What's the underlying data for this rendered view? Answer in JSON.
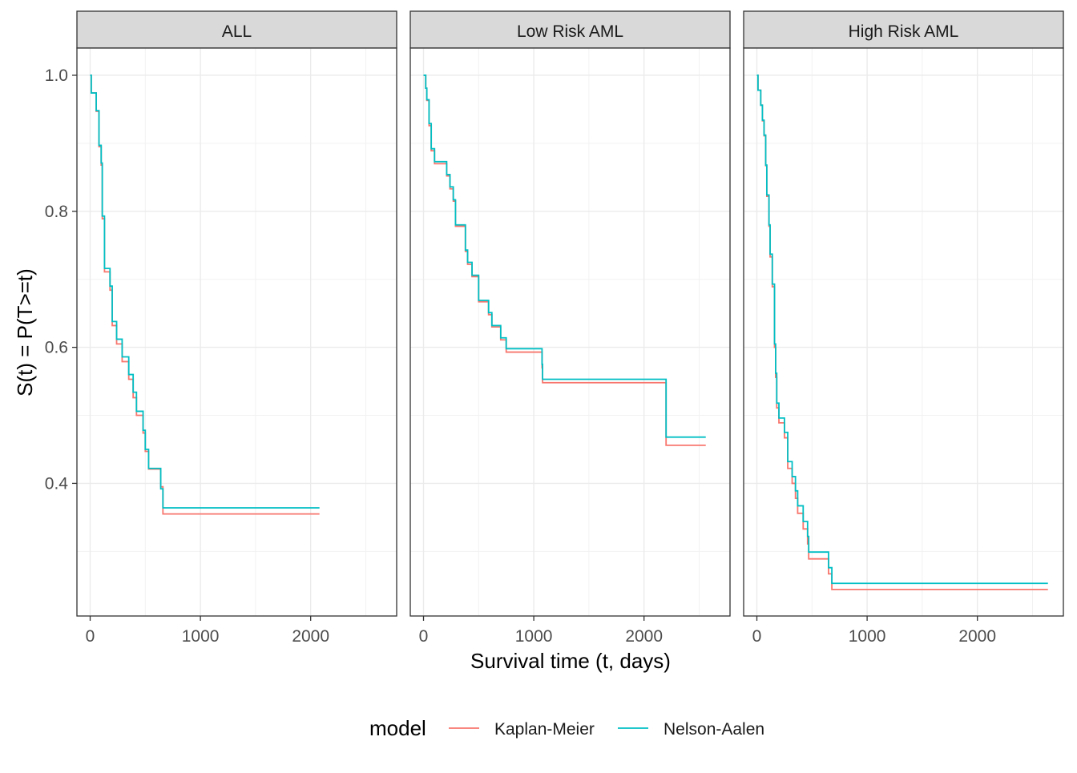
{
  "chart_data": {
    "type": "line",
    "step": true,
    "xlabel": "Survival time (t, days)",
    "ylabel": "S(t) = P(T>=t)",
    "xlim": [
      -120,
      2780
    ],
    "ylim": [
      0.205,
      1.04
    ],
    "x_ticks": [
      0,
      1000,
      2000
    ],
    "x_tick_labels": [
      "0",
      "1000",
      "2000"
    ],
    "y_ticks": [
      0.4,
      0.6,
      0.8,
      1.0
    ],
    "y_tick_labels": [
      "0.4",
      "0.6",
      "0.8",
      "1.0"
    ],
    "grid": true,
    "legend": {
      "title": "model",
      "position": "bottom",
      "items": [
        "Kaplan-Meier",
        "Nelson-Aalen"
      ]
    },
    "colors": {
      "Kaplan-Meier": "#F8766D",
      "Nelson-Aalen": "#00BFC4"
    },
    "panels": [
      {
        "name": "ALL",
        "series": [
          {
            "name": "Kaplan-Meier",
            "x": [
              0,
              10,
              55,
              80,
              100,
              110,
              130,
              180,
              200,
              240,
              290,
              350,
              390,
              420,
              480,
              500,
              530,
              580,
              640,
              660,
              2080
            ],
            "y": [
              1.0,
              0.974,
              0.947,
              0.895,
              0.868,
              0.789,
              0.711,
              0.684,
              0.632,
              0.605,
              0.579,
              0.553,
              0.526,
              0.5,
              0.474,
              0.447,
              0.421,
              0.421,
              0.395,
              0.355,
              0.355
            ]
          },
          {
            "name": "Nelson-Aalen",
            "x": [
              0,
              10,
              55,
              80,
              100,
              110,
              130,
              180,
              200,
              240,
              290,
              350,
              390,
              420,
              480,
              500,
              530,
              580,
              640,
              660,
              2080
            ],
            "y": [
              1.0,
              0.974,
              0.948,
              0.897,
              0.871,
              0.793,
              0.716,
              0.69,
              0.638,
              0.612,
              0.586,
              0.56,
              0.534,
              0.506,
              0.478,
              0.45,
              0.422,
              0.422,
              0.392,
              0.364,
              0.364
            ]
          }
        ]
      },
      {
        "name": "Low Risk AML",
        "series": [
          {
            "name": "Kaplan-Meier",
            "x": [
              0,
              20,
              30,
              50,
              70,
              100,
              210,
              240,
              270,
              290,
              380,
              400,
              440,
              500,
              590,
              620,
              700,
              750,
              1070,
              1075,
              1080,
              2200,
              2560
            ],
            "y": [
              1.0,
              0.981,
              0.963,
              0.926,
              0.889,
              0.87,
              0.852,
              0.833,
              0.815,
              0.778,
              0.741,
              0.722,
              0.704,
              0.667,
              0.648,
              0.63,
              0.611,
              0.593,
              0.593,
              0.57,
              0.548,
              0.456,
              0.456
            ]
          },
          {
            "name": "Nelson-Aalen",
            "x": [
              0,
              20,
              30,
              50,
              70,
              100,
              210,
              240,
              270,
              290,
              380,
              400,
              440,
              500,
              590,
              620,
              700,
              750,
              1070,
              1075,
              1080,
              2200,
              2560
            ],
            "y": [
              1.0,
              0.981,
              0.964,
              0.929,
              0.892,
              0.873,
              0.854,
              0.836,
              0.817,
              0.78,
              0.743,
              0.725,
              0.706,
              0.669,
              0.651,
              0.632,
              0.614,
              0.598,
              0.598,
              0.575,
              0.553,
              0.468,
              0.468
            ]
          }
        ]
      },
      {
        "name": "High Risk AML",
        "series": [
          {
            "name": "Kaplan-Meier",
            "x": [
              0,
              10,
              35,
              50,
              65,
              80,
              90,
              110,
              120,
              140,
              160,
              170,
              180,
              200,
              250,
              280,
              320,
              350,
              370,
              420,
              460,
              470,
              630,
              650,
              680,
              2640
            ],
            "y": [
              1.0,
              0.978,
              0.956,
              0.933,
              0.911,
              0.867,
              0.822,
              0.778,
              0.733,
              0.689,
              0.6,
              0.556,
              0.511,
              0.489,
              0.467,
              0.422,
              0.4,
              0.378,
              0.356,
              0.333,
              0.311,
              0.289,
              0.289,
              0.267,
              0.244,
              0.244
            ]
          },
          {
            "name": "Nelson-Aalen",
            "x": [
              0,
              10,
              35,
              50,
              65,
              80,
              90,
              110,
              120,
              140,
              160,
              170,
              180,
              200,
              250,
              280,
              320,
              350,
              370,
              420,
              460,
              470,
              630,
              650,
              680,
              2640
            ],
            "y": [
              1.0,
              0.978,
              0.956,
              0.934,
              0.912,
              0.868,
              0.824,
              0.78,
              0.737,
              0.693,
              0.605,
              0.562,
              0.518,
              0.496,
              0.475,
              0.432,
              0.41,
              0.389,
              0.367,
              0.344,
              0.322,
              0.299,
              0.299,
              0.276,
              0.253,
              0.253
            ]
          }
        ]
      }
    ]
  }
}
